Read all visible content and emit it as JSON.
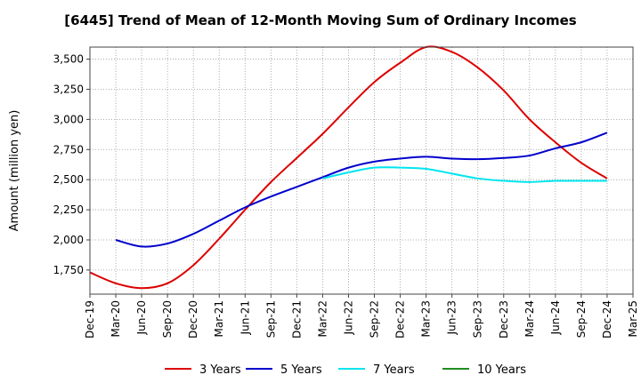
{
  "chart_data": {
    "type": "line",
    "title": "[6445]  Trend of Mean of 12-Month Moving Sum of Ordinary Incomes",
    "xlabel": "",
    "ylabel": "Amount (million yen)",
    "ylim": [
      1550,
      3600
    ],
    "yticks": [
      1750,
      2000,
      2250,
      2500,
      2750,
      3000,
      3250,
      3500
    ],
    "ytick_labels": [
      "1,750",
      "2,000",
      "2,250",
      "2,500",
      "2,750",
      "3,000",
      "3,250",
      "3,500"
    ],
    "categories": [
      "Dec-19",
      "Mar-20",
      "Jun-20",
      "Sep-20",
      "Dec-20",
      "Mar-21",
      "Jun-21",
      "Sep-21",
      "Dec-21",
      "Mar-22",
      "Jun-22",
      "Sep-22",
      "Dec-22",
      "Mar-23",
      "Jun-23",
      "Sep-23",
      "Dec-23",
      "Mar-24",
      "Jun-24",
      "Sep-24",
      "Dec-24",
      "Mar-25"
    ],
    "grid": true,
    "legend_position": "bottom",
    "series": [
      {
        "name": "3 Years",
        "color": "#dd0000",
        "values": [
          1730,
          1640,
          1600,
          1640,
          1790,
          2010,
          2250,
          2480,
          2680,
          2880,
          3100,
          3310,
          3470,
          3600,
          3560,
          3430,
          3240,
          3000,
          2810,
          2640,
          2510,
          null
        ]
      },
      {
        "name": "5 Years",
        "color": "#0000cc",
        "values": [
          null,
          2000,
          1945,
          1970,
          2050,
          2160,
          2270,
          2360,
          2440,
          2520,
          2600,
          2650,
          2675,
          2690,
          2675,
          2670,
          2680,
          2700,
          2760,
          2810,
          2890,
          null
        ]
      },
      {
        "name": "7 Years",
        "color": "#00e5ee",
        "values": [
          null,
          null,
          null,
          null,
          null,
          null,
          null,
          null,
          null,
          2510,
          2560,
          2600,
          2600,
          2590,
          2550,
          2510,
          2490,
          2480,
          2490,
          2490,
          2490,
          null
        ]
      },
      {
        "name": "10 Years",
        "color": "#228b22",
        "values": [
          null,
          null,
          null,
          null,
          null,
          null,
          null,
          null,
          null,
          null,
          null,
          null,
          null,
          null,
          null,
          null,
          null,
          null,
          null,
          null,
          null,
          null
        ]
      }
    ]
  }
}
